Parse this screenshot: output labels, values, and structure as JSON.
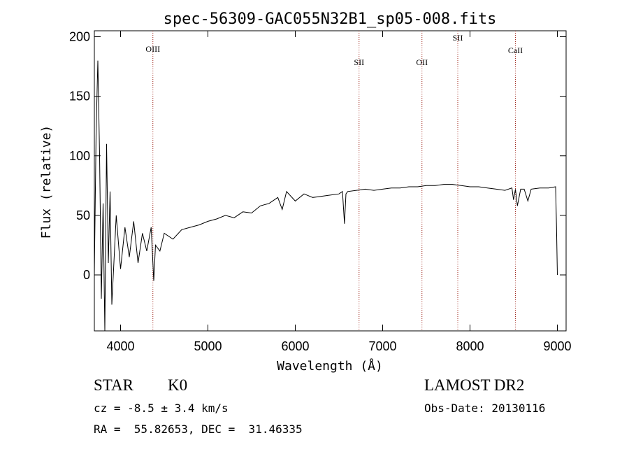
{
  "chart_data": {
    "type": "line",
    "title": "spec-56309-GAC055N32B1_sp05-008.fits",
    "xlabel": "Wavelength (Å)",
    "ylabel": "Flux (relative)",
    "xlim": [
      3700,
      9100
    ],
    "ylim": [
      -47,
      205
    ],
    "x_ticks": [
      4000,
      5000,
      6000,
      7000,
      8000,
      9000
    ],
    "y_ticks": [
      0,
      50,
      100,
      150,
      200
    ],
    "grid": false,
    "line_color": "#000000",
    "marker_color": "#a0281e",
    "series": [
      {
        "x": [
          3700,
          3720,
          3740,
          3760,
          3780,
          3800,
          3820,
          3840,
          3860,
          3880,
          3900,
          3950,
          4000,
          4050,
          4100,
          4150,
          4200,
          4250,
          4300,
          4350,
          4380,
          4400,
          4450,
          4500,
          4600,
          4700,
          4800,
          4900,
          5000,
          5100,
          5200,
          5300,
          5400,
          5500,
          5600,
          5700,
          5800,
          5850,
          5900,
          6000,
          6100,
          6200,
          6300,
          6400,
          6500,
          6540,
          6563,
          6580,
          6600,
          6700,
          6800,
          6900,
          7000,
          7100,
          7200,
          7300,
          7400,
          7500,
          7600,
          7700,
          7800,
          7900,
          8000,
          8100,
          8200,
          8300,
          8400,
          8480,
          8498,
          8520,
          8542,
          8580,
          8620,
          8662,
          8700,
          8800,
          8900,
          8980,
          8990,
          9000
        ],
        "values": [
          0,
          120,
          180,
          100,
          -20,
          60,
          -47,
          110,
          10,
          70,
          -25,
          50,
          5,
          40,
          15,
          45,
          10,
          35,
          20,
          40,
          -5,
          25,
          20,
          35,
          30,
          38,
          40,
          42,
          45,
          47,
          50,
          48,
          53,
          52,
          58,
          60,
          65,
          55,
          70,
          62,
          68,
          65,
          66,
          67,
          68,
          70,
          43,
          68,
          70,
          71,
          72,
          71,
          72,
          73,
          73,
          74,
          74,
          75,
          75,
          76,
          76,
          75,
          74,
          74,
          73,
          72,
          71,
          73,
          63,
          72,
          58,
          72,
          72,
          62,
          72,
          73,
          73,
          74,
          40,
          0
        ]
      }
    ],
    "line_markers": [
      {
        "label": "OIII",
        "x": 4370
      },
      {
        "label": "SII",
        "x": 6730
      },
      {
        "label": "OII",
        "x": 7450
      },
      {
        "label": "SII",
        "x": 7860
      },
      {
        "label": "CaII",
        "x": 8520
      }
    ]
  },
  "info": {
    "object_class": "STAR",
    "subclass": "K0",
    "cz_line": "cz = -8.5 ± 3.4 km/s",
    "radec_line": "RA =  55.82653, DEC =  31.46335",
    "survey": "LAMOST DR2",
    "obs_date_line": "Obs-Date: 20130116"
  }
}
